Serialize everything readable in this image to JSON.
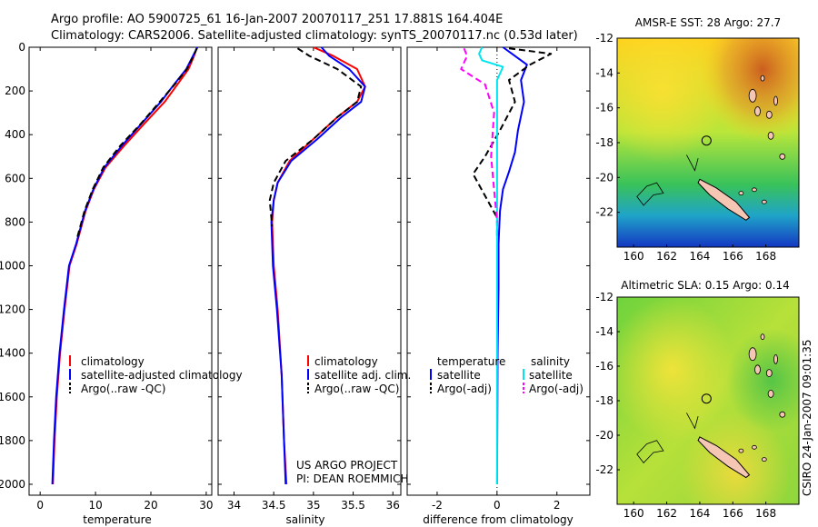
{
  "header": {
    "line1": "Argo profile: AO 5900725_61 16-Jan-2007 20070117_251 17.881S 164.404E",
    "line2": "Climatology: CARS2006. Satellite-adjusted climatology: synTS_20070117.nc (0.53d later)"
  },
  "colors": {
    "clim": "#ff0000",
    "sat": "#0000ff",
    "argo": "#000000",
    "sal_sat": "#00e5ee",
    "sal_argo": "#ff00ff"
  },
  "chart_data": [
    {
      "id": "temperature",
      "type": "line",
      "xlabel": "temperature",
      "xlim": [
        -2,
        31
      ],
      "ylim": [
        0,
        2050
      ],
      "y_inverted": true,
      "xticks": [
        0,
        10,
        20,
        30
      ],
      "yticks": [
        0,
        200,
        400,
        600,
        800,
        1000,
        1200,
        1400,
        1600,
        1800,
        2000
      ],
      "legend": {
        "placement": "lower-left",
        "items": [
          "climatology",
          "satellite-adjusted climatology",
          "Argo(..raw -QC)"
        ]
      },
      "series": [
        {
          "name": "climatology",
          "color": "clim",
          "dash": false,
          "points": [
            [
              28.3,
              0
            ],
            [
              27.8,
              40
            ],
            [
              26.8,
              100
            ],
            [
              24.8,
              170
            ],
            [
              22.5,
              250
            ],
            [
              18.8,
              350
            ],
            [
              15.2,
              450
            ],
            [
              11.8,
              550
            ],
            [
              9.7,
              650
            ],
            [
              8.2,
              750
            ],
            [
              6.6,
              900
            ],
            [
              5.3,
              1000
            ],
            [
              4.4,
              1200
            ],
            [
              3.6,
              1400
            ],
            [
              3.0,
              1600
            ],
            [
              2.6,
              1800
            ],
            [
              2.3,
              2000
            ]
          ]
        },
        {
          "name": "satellite-adjusted climatology",
          "color": "sat",
          "dash": false,
          "points": [
            [
              28.4,
              0
            ],
            [
              27.6,
              40
            ],
            [
              26.4,
              100
            ],
            [
              24.2,
              170
            ],
            [
              21.8,
              250
            ],
            [
              18.3,
              350
            ],
            [
              14.8,
              450
            ],
            [
              11.6,
              550
            ],
            [
              9.6,
              650
            ],
            [
              8.1,
              750
            ],
            [
              6.5,
              900
            ],
            [
              5.2,
              1000
            ],
            [
              4.3,
              1200
            ],
            [
              3.5,
              1400
            ],
            [
              2.9,
              1600
            ],
            [
              2.5,
              1800
            ],
            [
              2.2,
              2000
            ]
          ]
        },
        {
          "name": "Argo(..raw -QC)",
          "color": "argo",
          "dash": true,
          "points": [
            [
              28.3,
              5
            ],
            [
              27.7,
              40
            ],
            [
              26.5,
              100
            ],
            [
              24.3,
              170
            ],
            [
              21.6,
              250
            ],
            [
              18.2,
              350
            ],
            [
              14.5,
              450
            ],
            [
              11.4,
              550
            ],
            [
              9.5,
              650
            ],
            [
              8.0,
              750
            ],
            [
              6.6,
              880
            ]
          ]
        }
      ]
    },
    {
      "id": "salinity",
      "type": "line",
      "xlabel": "salinity",
      "xlim": [
        33.8,
        36.1
      ],
      "ylim": [
        0,
        2050
      ],
      "y_inverted": true,
      "xticks": [
        34,
        34.5,
        35,
        35.5,
        36
      ],
      "yticks": [
        0,
        200,
        400,
        600,
        800,
        1000,
        1200,
        1400,
        1600,
        1800,
        2000
      ],
      "legend": {
        "placement": "lower-right",
        "items": [
          "climatology",
          "satellite adj. clim.",
          "Argo(..raw -QC)"
        ]
      },
      "annotation": [
        "US ARGO PROJECT",
        "PI: DEAN ROEMMICH"
      ],
      "series": [
        {
          "name": "climatology",
          "color": "clim",
          "dash": false,
          "points": [
            [
              35.0,
              0
            ],
            [
              35.25,
              40
            ],
            [
              35.55,
              100
            ],
            [
              35.65,
              180
            ],
            [
              35.55,
              250
            ],
            [
              35.3,
              320
            ],
            [
              35.0,
              420
            ],
            [
              34.7,
              520
            ],
            [
              34.55,
              620
            ],
            [
              34.5,
              700
            ],
            [
              34.48,
              800
            ],
            [
              34.5,
              1000
            ],
            [
              34.55,
              1200
            ],
            [
              34.6,
              1500
            ],
            [
              34.63,
              1800
            ],
            [
              34.66,
              2000
            ]
          ]
        },
        {
          "name": "satellite adj. clim.",
          "color": "sat",
          "dash": false,
          "points": [
            [
              35.1,
              0
            ],
            [
              35.2,
              40
            ],
            [
              35.45,
              100
            ],
            [
              35.65,
              180
            ],
            [
              35.6,
              250
            ],
            [
              35.35,
              320
            ],
            [
              35.05,
              420
            ],
            [
              34.72,
              520
            ],
            [
              34.55,
              620
            ],
            [
              34.5,
              700
            ],
            [
              34.47,
              800
            ],
            [
              34.49,
              1000
            ],
            [
              34.54,
              1200
            ],
            [
              34.6,
              1500
            ],
            [
              34.63,
              1800
            ],
            [
              34.65,
              2000
            ]
          ]
        },
        {
          "name": "Argo(..raw -QC)",
          "color": "argo",
          "dash": true,
          "points": [
            [
              34.8,
              5
            ],
            [
              34.95,
              40
            ],
            [
              35.3,
              100
            ],
            [
              35.6,
              180
            ],
            [
              35.55,
              250
            ],
            [
              35.3,
              320
            ],
            [
              35.0,
              420
            ],
            [
              34.65,
              520
            ],
            [
              34.5,
              620
            ],
            [
              34.45,
              700
            ],
            [
              34.48,
              820
            ]
          ]
        }
      ]
    },
    {
      "id": "difference",
      "type": "line",
      "xlabel": "difference from climatology",
      "xlim": [
        -3,
        3.1
      ],
      "ylim": [
        0,
        2050
      ],
      "y_inverted": true,
      "xticks": [
        -2,
        0,
        2
      ],
      "yticks": [
        0,
        200,
        400,
        600,
        800,
        1000,
        1200,
        1400,
        1600,
        1800,
        2000
      ],
      "legend": {
        "placement": "lower",
        "temperature_header": "temperature",
        "salinity_header": "salinity",
        "temperature_items": [
          "satellite",
          "Argo(-adj)"
        ],
        "salinity_items": [
          "satellite",
          "Argo(-adj)"
        ]
      },
      "series": [
        {
          "name": "temperature satellite",
          "color": "sat",
          "dash": false,
          "points": [
            [
              0.2,
              0
            ],
            [
              0.5,
              30
            ],
            [
              1.0,
              80
            ],
            [
              0.8,
              150
            ],
            [
              0.9,
              250
            ],
            [
              0.7,
              380
            ],
            [
              0.6,
              480
            ],
            [
              0.4,
              570
            ],
            [
              0.2,
              650
            ],
            [
              0.1,
              750
            ],
            [
              0.05,
              900
            ],
            [
              0.05,
              1100
            ],
            [
              0.02,
              1400
            ],
            [
              0.0,
              2000
            ]
          ]
        },
        {
          "name": "temperature Argo(-adj)",
          "color": "argo",
          "dash": true,
          "points": [
            [
              0.4,
              5
            ],
            [
              1.8,
              30
            ],
            [
              1.1,
              80
            ],
            [
              0.4,
              150
            ],
            [
              0.6,
              250
            ],
            [
              0.1,
              380
            ],
            [
              -0.4,
              500
            ],
            [
              -0.8,
              580
            ],
            [
              -0.4,
              680
            ],
            [
              0.0,
              780
            ],
            [
              0.0,
              880
            ]
          ]
        },
        {
          "name": "salinity satellite",
          "color": "sal_sat",
          "dash": false,
          "points": [
            [
              -0.5,
              0
            ],
            [
              -0.6,
              30
            ],
            [
              -0.5,
              60
            ],
            [
              0.2,
              90
            ],
            [
              0.0,
              150
            ],
            [
              0.0,
              300
            ],
            [
              0.0,
              2000
            ]
          ]
        },
        {
          "name": "salinity Argo(-adj)",
          "color": "sal_argo",
          "dash": true,
          "points": [
            [
              -1.1,
              5
            ],
            [
              -1.0,
              40
            ],
            [
              -1.2,
              100
            ],
            [
              -0.4,
              170
            ],
            [
              -0.1,
              300
            ],
            [
              -0.2,
              500
            ],
            [
              -0.1,
              650
            ],
            [
              0.0,
              800
            ]
          ]
        }
      ]
    },
    {
      "id": "sst_map",
      "type": "heatmap",
      "title": "AMSR-E SST: 28 Argo: 27.7",
      "xticks": [
        160,
        162,
        164,
        166,
        168
      ],
      "yticks": [
        -12,
        -14,
        -16,
        -18,
        -20,
        -22
      ],
      "xlim": [
        159,
        170
      ],
      "ylim": [
        -24,
        -12
      ]
    },
    {
      "id": "sla_map",
      "type": "heatmap",
      "title": "Altimetric SLA: 0.15 Argo: 0.14",
      "xticks": [
        160,
        162,
        164,
        166,
        168
      ],
      "yticks": [
        -12,
        -14,
        -16,
        -18,
        -20,
        -22
      ],
      "xlim": [
        159,
        170
      ],
      "ylim": [
        -24,
        -12
      ]
    }
  ],
  "footer": {
    "stamp": "CSIRO 24-Jan-2007 09:01:35"
  }
}
